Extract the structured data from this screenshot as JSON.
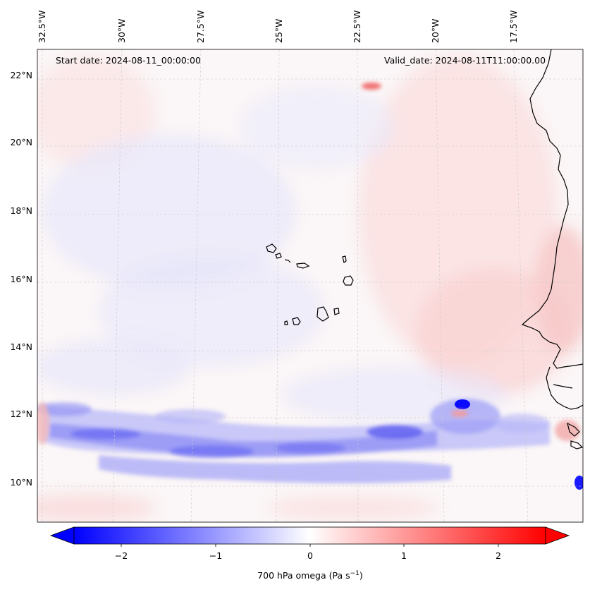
{
  "map": {
    "start_date": "Start date: 2024-08-11_00:00:00",
    "valid_date": "Valid_date: 2024-08-11T11:00:00.00",
    "lon_labels": [
      "32.5°W",
      "30°W",
      "27.5°W",
      "25°W",
      "22.5°W",
      "20°W",
      "17.5°W"
    ],
    "lat_labels": [
      "22°N",
      "20°N",
      "18°N",
      "16°N",
      "14°N",
      "12°N",
      "10°N"
    ],
    "variable": "700 hPa omega",
    "units_prefix": "(Pa s",
    "units_exp": "−1",
    "units_suffix": ")"
  },
  "colorbar": {
    "ticks": [
      "−2",
      "−1",
      "0",
      "1",
      "2"
    ],
    "tick_values": [
      -2,
      -1,
      0,
      1,
      2
    ],
    "vmin": -2.5,
    "vmax": 2.5,
    "colormap": "bwr",
    "low_color": "#0000ff",
    "mid_color": "#ffffff",
    "high_color": "#ff0000",
    "extend": "both"
  }
}
